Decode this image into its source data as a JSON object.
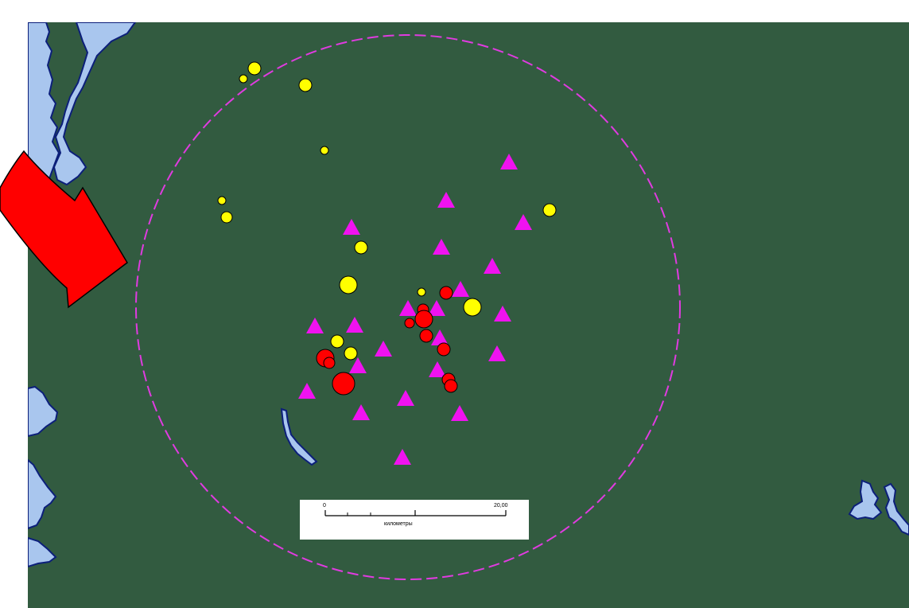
{
  "colors": {
    "background": "#ffffff",
    "land": "#325b40",
    "water": "#a9c6ee",
    "water_edge": "#0c1f7a",
    "circle": "#e03be0",
    "triangle": "#f012f0",
    "yellow_point": "#ffff00",
    "red_point": "#ff0000",
    "arrow": "#ff0000"
  },
  "symbols": {
    "triangle_marker": "magenta-triangle",
    "yellow_marker": "yellow-circle",
    "red_marker": "red-circle",
    "pointer": "red-curved-arrow"
  },
  "scale_bar": {
    "start_label": "0",
    "end_label": "20,00",
    "unit_label": "километры"
  }
}
